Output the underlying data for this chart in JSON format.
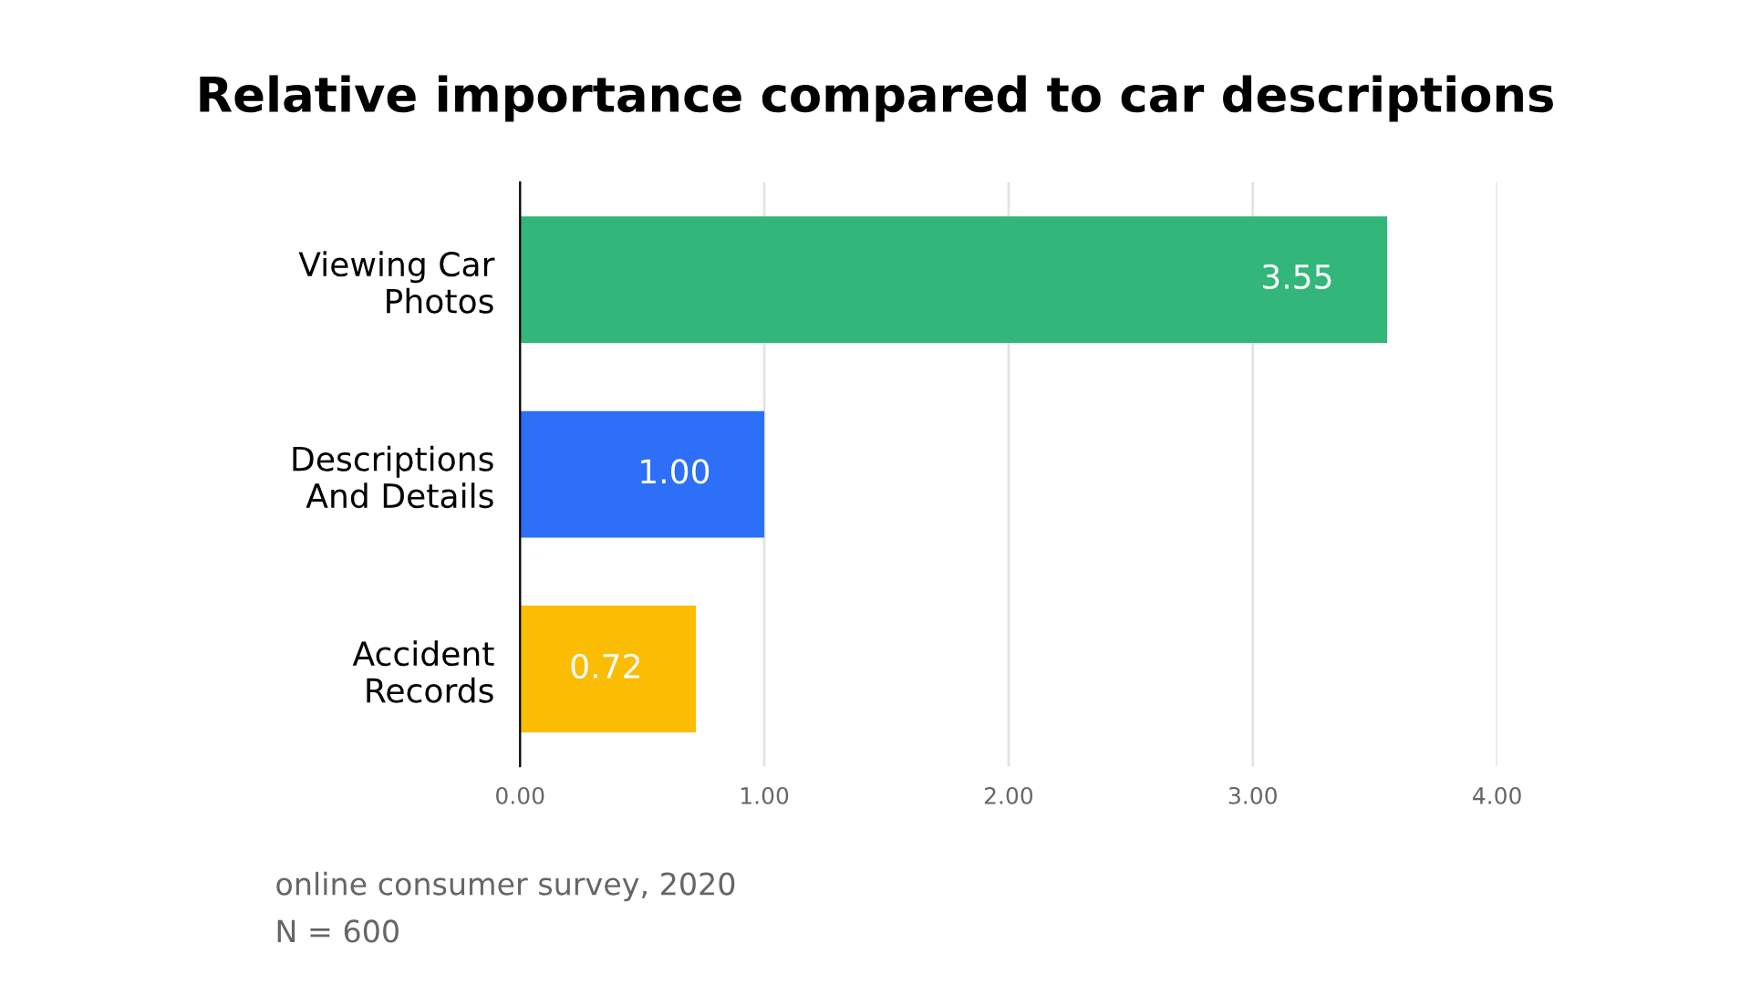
{
  "chart_data": {
    "type": "bar",
    "orientation": "horizontal",
    "title": "Relative importance compared to car descriptions",
    "categories": [
      "Viewing Car\nPhotos",
      "Descriptions\nAnd Details",
      "Accident\nRecords"
    ],
    "values": [
      3.55,
      1.0,
      0.72
    ],
    "colors": [
      "#33b679",
      "#2d6ff7",
      "#fbbc04"
    ],
    "value_labels": [
      "3.55",
      "1.00",
      "0.72"
    ],
    "xlim": [
      0,
      4
    ],
    "xticks": [
      {
        "value": 0,
        "label": "0.00"
      },
      {
        "value": 1,
        "label": "1.00"
      },
      {
        "value": 2,
        "label": "2.00"
      },
      {
        "value": 3,
        "label": "3.00"
      },
      {
        "value": 4,
        "label": "4.00"
      }
    ],
    "grid": "x",
    "legend": false,
    "annotations": [
      "online consumer survey, 2020",
      "N = 600"
    ]
  }
}
